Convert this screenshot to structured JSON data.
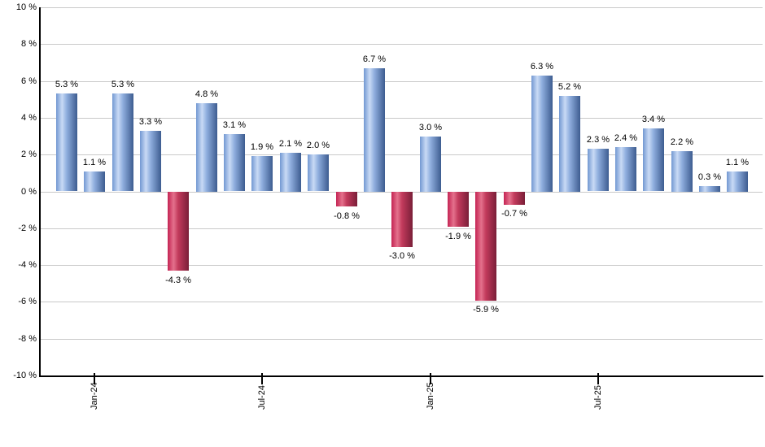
{
  "chart_data": {
    "type": "bar",
    "title": "",
    "xlabel": "",
    "ylabel": "",
    "ylim": [
      -10,
      10
    ],
    "grid": "horizontal",
    "legend": "none",
    "values": [
      5.3,
      1.1,
      5.3,
      3.3,
      -4.3,
      4.8,
      3.1,
      1.9,
      2.1,
      2.0,
      -0.8,
      6.7,
      -3.0,
      3.0,
      -1.9,
      -5.9,
      -0.7,
      6.3,
      5.2,
      2.3,
      2.4,
      3.4,
      2.2,
      0.3,
      1.1
    ],
    "bar_labels": [
      "5.3 %",
      "1.1 %",
      "5.3 %",
      "3.3 %",
      "-4.3 %",
      "4.8 %",
      "3.1 %",
      "1.9 %",
      "2.1 %",
      "2.0 %",
      "-0.8 %",
      "6.7 %",
      "-3.0 %",
      "3.0 %",
      "-1.9 %",
      "-5.9 %",
      "-0.7 %",
      "6.3 %",
      "5.2 %",
      "2.3 %",
      "2.4 %",
      "3.4 %",
      "2.2 %",
      "0.3 %",
      "1.1 %"
    ],
    "x_ticks": [
      {
        "index": 1,
        "label": "Jan-24"
      },
      {
        "index": 7,
        "label": "Jul-24"
      },
      {
        "index": 13,
        "label": "Jan-25"
      },
      {
        "index": 19,
        "label": "Jul-25"
      }
    ],
    "y_ticks": [
      "10 %",
      "8 %",
      "6 %",
      "4 %",
      "2 %",
      "0 %",
      "-2 %",
      "-4 %",
      "-6 %",
      "-8 %",
      "-10 %"
    ],
    "colors": {
      "background": "#FFFFFF",
      "gridline": "#C9C9C9",
      "axis": "#000000",
      "text": "#000000",
      "positive_gradient": [
        "#7298D2",
        "#C9DAF5",
        "#8FAEDE",
        "#3D5C90"
      ],
      "negative_gradient": [
        "#C42353",
        "#E4718C",
        "#C23A5C",
        "#7A1F38"
      ]
    }
  }
}
